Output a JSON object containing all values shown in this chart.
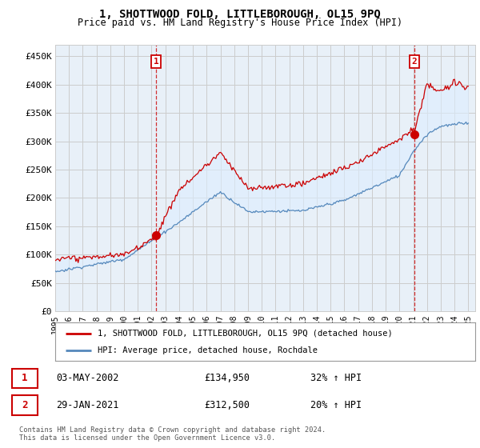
{
  "title": "1, SHOTTWOOD FOLD, LITTLEBOROUGH, OL15 9PQ",
  "subtitle": "Price paid vs. HM Land Registry's House Price Index (HPI)",
  "xlim": [
    1995,
    2025.5
  ],
  "ylim": [
    0,
    470000
  ],
  "yticks": [
    0,
    50000,
    100000,
    150000,
    200000,
    250000,
    300000,
    350000,
    400000,
    450000
  ],
  "ytick_labels": [
    "£0",
    "£50K",
    "£100K",
    "£150K",
    "£200K",
    "£250K",
    "£300K",
    "£350K",
    "£400K",
    "£450K"
  ],
  "xticks": [
    1995,
    1996,
    1997,
    1998,
    1999,
    2000,
    2001,
    2002,
    2003,
    2004,
    2005,
    2006,
    2007,
    2008,
    2009,
    2010,
    2011,
    2012,
    2013,
    2014,
    2015,
    2016,
    2017,
    2018,
    2019,
    2020,
    2021,
    2022,
    2023,
    2024,
    2025
  ],
  "line_color_red": "#cc0000",
  "line_color_blue": "#5588bb",
  "fill_color_blue": "#ddeeff",
  "marker_color": "#cc0000",
  "grid_color": "#cccccc",
  "plot_bg_color": "#e8f0f8",
  "background_color": "#ffffff",
  "legend_label_red": "1, SHOTTWOOD FOLD, LITTLEBOROUGH, OL15 9PQ (detached house)",
  "legend_label_blue": "HPI: Average price, detached house, Rochdale",
  "sale1_x": 2002.33,
  "sale1_y": 134950,
  "sale1_label": "1",
  "sale1_date": "03-MAY-2002",
  "sale1_price": "£134,950",
  "sale1_hpi": "32% ↑ HPI",
  "sale2_x": 2021.08,
  "sale2_y": 312500,
  "sale2_label": "2",
  "sale2_date": "29-JAN-2021",
  "sale2_price": "£312,500",
  "sale2_hpi": "20% ↑ HPI",
  "footer1": "Contains HM Land Registry data © Crown copyright and database right 2024.",
  "footer2": "This data is licensed under the Open Government Licence v3.0."
}
